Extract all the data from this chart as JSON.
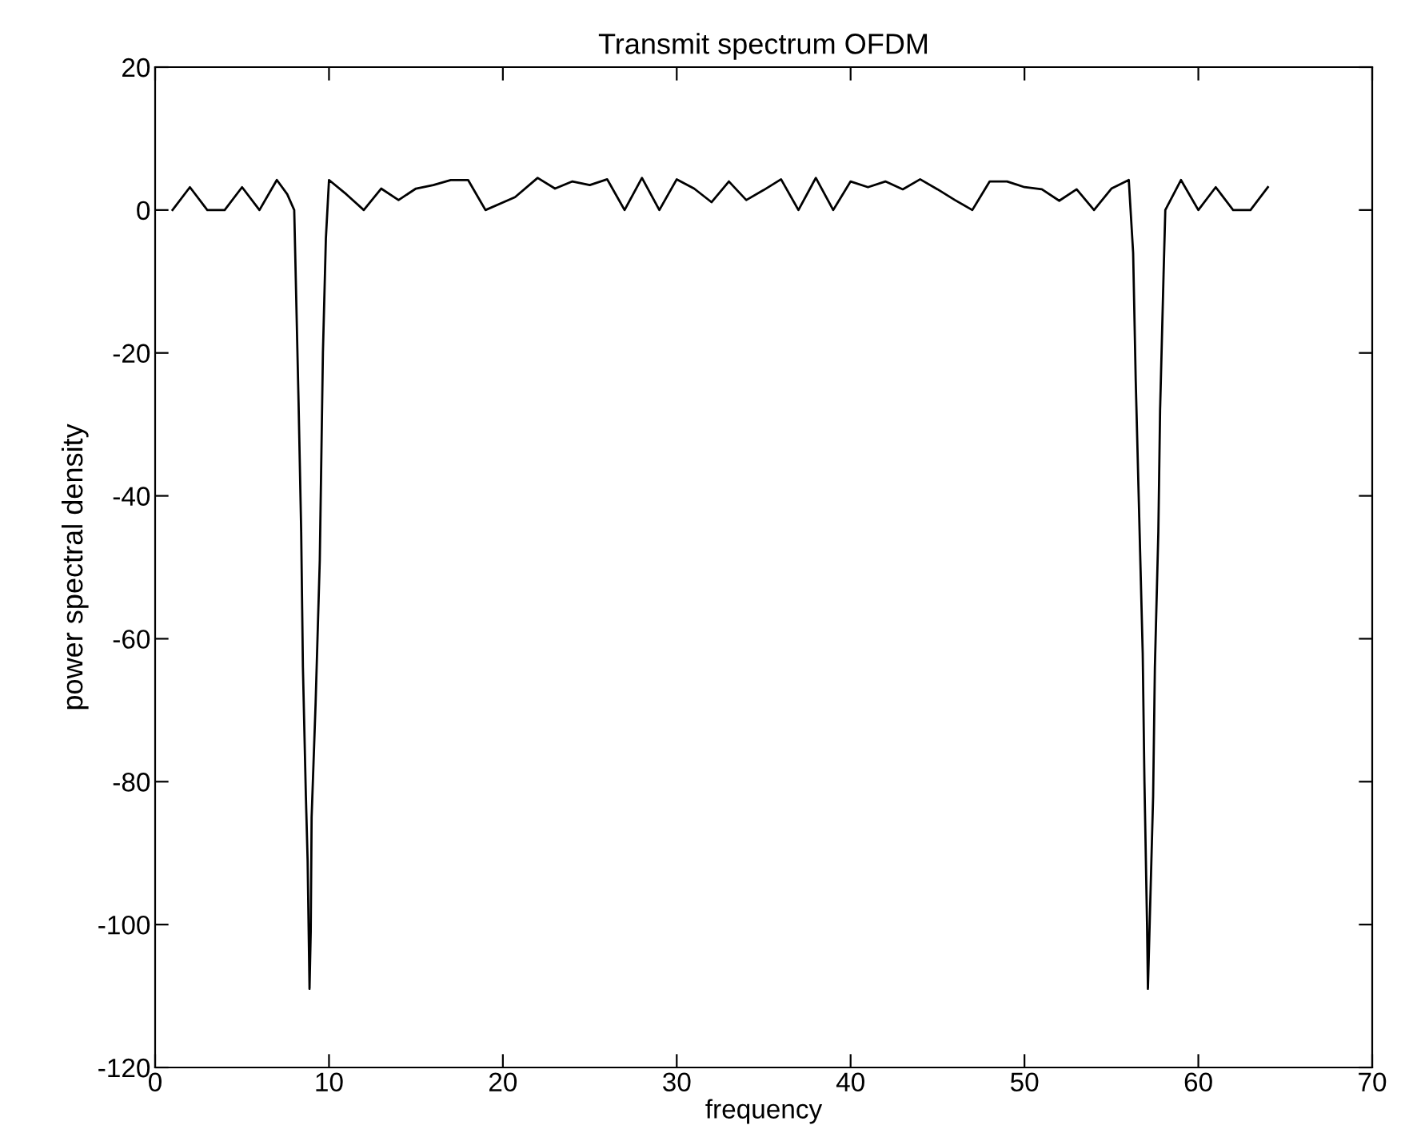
{
  "chart_data": {
    "type": "line",
    "title": "Transmit spectrum OFDM",
    "xlabel": "frequency",
    "ylabel": "power spectral density",
    "xlim": [
      0,
      70
    ],
    "xticks": [
      0,
      10,
      20,
      30,
      40,
      50,
      60,
      70
    ],
    "ylim": [
      -120,
      20
    ],
    "yticks": [
      -120,
      -100,
      -80,
      -60,
      -40,
      -20,
      0,
      20
    ],
    "grid": false,
    "legend": false,
    "series": [
      {
        "color": "#000000",
        "line_style": "solid",
        "marker": "none",
        "x": [
          1,
          2,
          3,
          4,
          5,
          6,
          7,
          7.6,
          8,
          8.25,
          8.4,
          8.5,
          8.67,
          8.77,
          8.88,
          8.95,
          9.0,
          9.23,
          9.47,
          9.65,
          9.82,
          10,
          11,
          12,
          13,
          14,
          15,
          16,
          17,
          18,
          19,
          20.7,
          22,
          23,
          24,
          25,
          26,
          27,
          28,
          29,
          30,
          31,
          32,
          33,
          34,
          35,
          36,
          37,
          38,
          39,
          40,
          41,
          42,
          43,
          44,
          45,
          46,
          47,
          48,
          49,
          50,
          51,
          52,
          53,
          54,
          55,
          56,
          56.25,
          56.4,
          56.6,
          56.8,
          56.9,
          57.05,
          57.1,
          57.2,
          57.4,
          57.5,
          57.7,
          57.8,
          58.0,
          58.1,
          59,
          60,
          61,
          62,
          63,
          64
        ],
        "values": [
          0,
          3.2,
          0,
          0,
          3.2,
          0,
          4.2,
          2.2,
          0,
          -27,
          -45,
          -64,
          -82,
          -91,
          -109,
          -101,
          -85,
          -69,
          -49,
          -20,
          -4,
          4.2,
          2.2,
          0,
          3.0,
          1.4,
          3.0,
          3.5,
          4.2,
          4.2,
          0,
          1.8,
          4.5,
          3.0,
          4.0,
          3.5,
          4.3,
          0,
          4.5,
          0,
          4.3,
          3.0,
          1.1,
          4.0,
          1.4,
          2.8,
          4.3,
          0,
          4.5,
          0,
          4.0,
          3.2,
          4.0,
          2.9,
          4.3,
          2.9,
          1.4,
          0,
          4.0,
          4.0,
          3.2,
          2.9,
          1.3,
          2.9,
          0,
          3.0,
          4.2,
          -6,
          -24,
          -43,
          -62,
          -80,
          -100,
          -109,
          -100,
          -82,
          -64,
          -45,
          -28,
          -9,
          0,
          4.2,
          0,
          3.2,
          0,
          0,
          3.2
        ]
      }
    ]
  }
}
